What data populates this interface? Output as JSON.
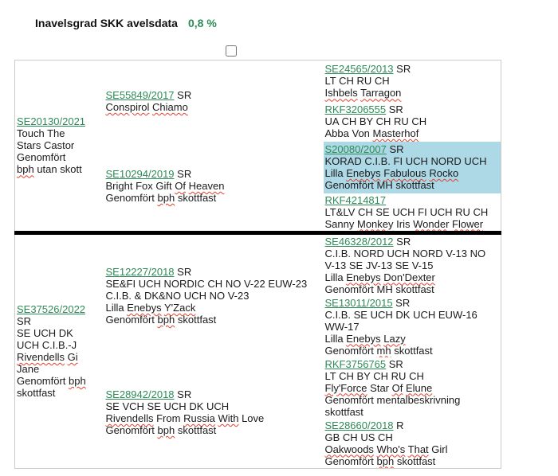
{
  "header": {
    "title": "Inavelsgrad SKK avelsdata",
    "value": "0,8 %"
  },
  "checkbox": {
    "checked": false
  },
  "colors": {
    "link_green": "#2E8B57",
    "value_green": "#2E8B57",
    "highlight_blue": "#ADD8E6",
    "divider_black": "#000000",
    "table_border": "#CCCCCC",
    "squiggle_red": "#E3402F"
  },
  "misspelled": [
    "bph",
    "mh",
    "Conspirol",
    "Chiamo",
    "Ishbels",
    "Tarragon",
    "Masterhof",
    "Enebys",
    "Fabulous",
    "Rocko",
    "Monkey",
    "Wonder",
    "Flower",
    "Of",
    "Heaven",
    "Y'Zack",
    "Don'Dexter",
    "Lazy",
    "Fly'Force",
    "Elune",
    "Oakwoods",
    "Who's",
    "That",
    "Rivendells",
    "Gi",
    "Russia",
    "With"
  ],
  "pedigree": {
    "parents": [
      {
        "reg": "SE20130/2021",
        "suffix": "",
        "lines": [
          "Touch The",
          "Stars Castor",
          "Genomfört",
          "bph utan skott"
        ]
      },
      {
        "reg": "SE37526/2022",
        "suffix": "",
        "lines": [
          "SR",
          "SE UCH DK",
          "UCH C.I.B.-J",
          "Rivendells Gi",
          "Jane",
          "Genomfört bph",
          "skottfast"
        ]
      }
    ],
    "grandparents": [
      {
        "reg": "SE55849/2017",
        "suffix": "SR",
        "lines": [
          "Conspirol Chiamo"
        ]
      },
      {
        "reg": "SE10294/2019",
        "suffix": "SR",
        "lines": [
          "Bright Fox Gift Of Heaven",
          "Genomfört bph skottfast"
        ]
      },
      {
        "reg": "SE12227/2018",
        "suffix": "SR",
        "lines": [
          "SE&FI UCH NORDIC CH NO V-22 EUW-23",
          "C.I.B. & DK&NO UCH NO V-23",
          "Lilla Enebys Y'Zack",
          "Genomfört bph skottfast"
        ]
      },
      {
        "reg": "SE28942/2018",
        "suffix": "SR",
        "lines": [
          "SE VCH SE UCH DK UCH",
          "Rivendells From Russia With Love",
          "Genomfört bph skottfast"
        ]
      }
    ],
    "great_grandparents": [
      {
        "reg": "SE24565/2013",
        "suffix": "SR",
        "lines": [
          "LT CH RU CH",
          "Ishbels Tarragon"
        ]
      },
      {
        "reg": "RKF3206555",
        "suffix": "SR",
        "lines": [
          "UA CH BY CH RU CH",
          "Abba Von Masterhof"
        ]
      },
      {
        "reg": "S20080/2007",
        "suffix": "SR",
        "highlighted": true,
        "lines": [
          "KORAD C.I.B. FI UCH NORD UCH",
          "Lilla Enebys Fabulous Rocko",
          "Genomfört MH skottfast"
        ]
      },
      {
        "reg": "RKF4214817",
        "suffix": "",
        "lines": [
          "LT&LV CH SE UCH FI UCH RU CH",
          "Sanny Monkey Iris Wonder Flower"
        ]
      },
      {
        "reg": "SE46328/2012",
        "suffix": "SR",
        "lines": [
          "C.I.B. NORD UCH NORD V-13 NO",
          "V-13 SE JV-13 SE V-15",
          "Lilla Enebys Don'Dexter",
          "Genomfört MH skottfast"
        ]
      },
      {
        "reg": "SE13011/2015",
        "suffix": "SR",
        "lines": [
          "C.I.B. SE UCH DK UCH EUW-16",
          "WW-17",
          "Lilla Enebys Lazy",
          "Genomfört mh skottfast"
        ]
      },
      {
        "reg": "RKF3756765",
        "suffix": "SR",
        "lines": [
          "LT CH BY CH RU CH",
          "Fly'Force Star Of Elune",
          "Genomfört mentalbeskrivning",
          "skottfast"
        ]
      },
      {
        "reg": "SE28660/2018",
        "suffix": "R",
        "lines": [
          "GB CH US CH",
          "Oakwoods Who's That Girl",
          "Genomfört bph skottfast"
        ]
      }
    ]
  }
}
